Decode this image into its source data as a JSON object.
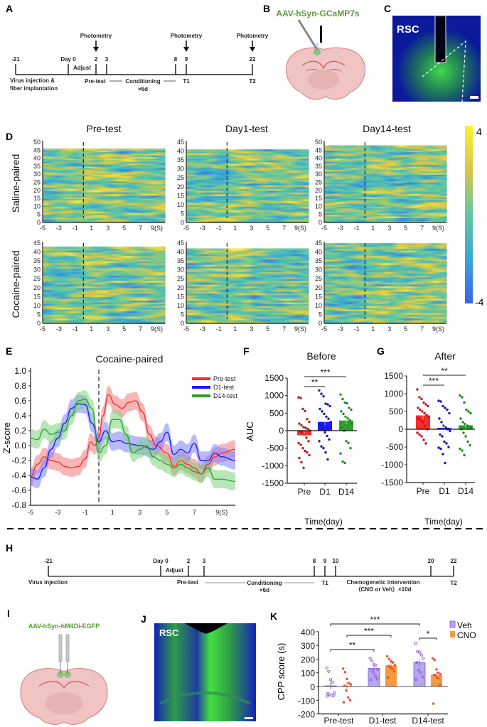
{
  "panel_labels": {
    "A": "A",
    "B": "B",
    "C": "C",
    "D": "D",
    "E": "E",
    "F": "F",
    "G": "G",
    "H": "H",
    "I": "I",
    "J": "J",
    "K": "K"
  },
  "timeline_a": {
    "photometry": "Photometry",
    "days": [
      "-21",
      "Day 0",
      "2",
      "3",
      "8",
      "9",
      "22"
    ],
    "adjust": "Adjust",
    "virus_line1": "Virus injection &",
    "virus_line2": "fiber implantation",
    "pretest": "Pre-test",
    "conditioning": "Conditioning",
    "conditioning_duration": "×6d",
    "t1": "T1",
    "t2": "T2"
  },
  "panel_b": {
    "virus": "AAV-hSyn-GCaMP7s"
  },
  "panel_c": {
    "region": "RSC"
  },
  "timeline_h": {
    "days": [
      "-21",
      "Day 0",
      "2",
      "3",
      "8",
      "9",
      "10",
      "20",
      "22"
    ],
    "adjust": "Adjust",
    "virus": "Virus injection",
    "pretest": "Pre-test",
    "conditioning": "Conditioning",
    "conditioning_duration": "×6d",
    "t1": "T1",
    "intervention": "Chemogenetic intervention",
    "intervention_detail": "（CNO or Veh）×10d",
    "t2": "T2"
  },
  "panel_i": {
    "virus": "AAV-hSyn-hM4Di-EGFP"
  },
  "panel_j": {
    "region": "RSC"
  },
  "colors": {
    "pre": "#ff2a2a",
    "d1": "#1a1aff",
    "d14": "#2ca02c",
    "veh": "#b9a6f0",
    "cno": "#f39a3c",
    "pre_dots": "#c01818",
    "d1_dots": "#1a1aa8",
    "d14_dots": "#1f8a1f"
  },
  "chart_data": [
    {
      "type": "heatmap",
      "columns": [
        "Pre-test",
        "Day1-test",
        "Day14-test"
      ],
      "rows": [
        "Saline-paired",
        "Cocaine-paired"
      ],
      "x_ticks": [
        "-5",
        "-3",
        "-1",
        "1",
        "3",
        "5",
        "7",
        "9(S)"
      ],
      "xlim": [
        -5,
        10
      ],
      "y_axis_max": [
        [
          50,
          45,
          50
        ],
        [
          45,
          45,
          45
        ]
      ],
      "trial_counts": [
        [
          46,
          41,
          48
        ],
        [
          43,
          42,
          45
        ]
      ],
      "event_marker_x": 0,
      "colorbar": {
        "max_label": "4",
        "min_label": "-4",
        "colormap": "parula"
      }
    },
    {
      "type": "line",
      "title": "Cocaine-paired",
      "ylabel": "Z-score",
      "xlim": [
        -5,
        10
      ],
      "ylim": [
        -0.8,
        1.0
      ],
      "x_ticks": [
        "-5",
        "-3",
        "-1",
        "1",
        "3",
        "5",
        "7",
        "9(S)"
      ],
      "y_ticks": [
        "1.0",
        "0.8",
        "0.6",
        "0.4",
        "0.2",
        "0.0",
        "-0.2",
        "-0.4",
        "-0.6",
        "-0.8"
      ],
      "event_marker_x": 0,
      "legend_position": "top-right",
      "band": 0.12,
      "series": [
        {
          "name": "Pre-test",
          "color": "#ff2a2a",
          "x": [
            -5,
            -4.5,
            -4,
            -3.5,
            -3,
            -2.5,
            -2,
            -1.5,
            -1,
            -0.6,
            -0.3,
            0,
            0.3,
            0.7,
            1.2,
            1.7,
            2.2,
            2.7,
            3.2,
            3.7,
            4.2,
            5,
            5.5,
            6,
            6.5,
            7,
            7.5,
            8,
            8.5,
            9,
            10
          ],
          "y": [
            -0.42,
            -0.25,
            -0.15,
            -0.2,
            -0.22,
            -0.28,
            -0.3,
            -0.28,
            -0.18,
            0.05,
            0.0,
            0.1,
            0.4,
            0.68,
            0.55,
            0.5,
            0.58,
            0.6,
            0.45,
            0.15,
            0.0,
            -0.1,
            -0.28,
            -0.2,
            -0.25,
            -0.3,
            -0.38,
            -0.25,
            -0.15,
            -0.1,
            -0.05
          ]
        },
        {
          "name": "D1-test",
          "color": "#1a1aff",
          "x": [
            -5,
            -4.5,
            -4,
            -3.5,
            -3,
            -2.5,
            -2,
            -1.5,
            -1,
            -0.5,
            0,
            0.5,
            1,
            1.5,
            2,
            3,
            4,
            4.5,
            5,
            5.5,
            6,
            6.5,
            7,
            7.5,
            8,
            8.5,
            9,
            10
          ],
          "y": [
            -0.42,
            -0.45,
            -0.3,
            -0.05,
            0.1,
            0.3,
            0.5,
            0.56,
            0.55,
            0.3,
            0.05,
            0.2,
            0.05,
            0.07,
            0.03,
            0.0,
            -0.05,
            0.05,
            0.18,
            -0.12,
            -0.05,
            -0.1,
            0.03,
            -0.2,
            -0.2,
            -0.1,
            -0.15,
            -0.2
          ]
        },
        {
          "name": "D14-test",
          "color": "#2ca02c",
          "x": [
            -5,
            -4.5,
            -4,
            -3.5,
            -3,
            -2.5,
            -2,
            -1.5,
            -1,
            -0.5,
            0,
            0.5,
            1,
            1.5,
            2,
            2.5,
            3,
            3.5,
            4,
            4.5,
            5,
            5.5,
            6,
            6.5,
            7,
            7.5,
            8,
            8.5,
            9,
            10
          ],
          "y": [
            0.1,
            0.08,
            0.22,
            0.15,
            0.18,
            0.2,
            0.4,
            0.6,
            0.62,
            0.5,
            -0.1,
            0.0,
            0.35,
            0.35,
            0.15,
            -0.1,
            -0.05,
            0.0,
            -0.15,
            -0.2,
            -0.25,
            -0.3,
            -0.25,
            -0.3,
            -0.35,
            -0.38,
            -0.3,
            -0.45,
            -0.45,
            -0.48
          ]
        }
      ]
    },
    {
      "type": "bar",
      "title": "Before",
      "ylabel": "AUC",
      "xlabel": "Time(day)",
      "categories": [
        "Pre",
        "D1",
        "D14"
      ],
      "ylim": [
        -1500,
        1500
      ],
      "y_ticks": [
        "1500",
        "1000",
        "500",
        "0",
        "-500",
        "-1000",
        "-1500"
      ],
      "means": [
        -130,
        250,
        290
      ],
      "points": [
        [
          950,
          930,
          620,
          560,
          330,
          250,
          200,
          150,
          100,
          80,
          50,
          0,
          -20,
          -50,
          -120,
          -200,
          -300,
          -350,
          -400,
          -500,
          -580,
          -620,
          -700,
          -780,
          -900,
          -1060
        ],
        [
          1150,
          1050,
          980,
          770,
          750,
          700,
          620,
          550,
          480,
          400,
          340,
          250,
          150,
          50,
          -50,
          -150,
          -250,
          -300,
          -450,
          -500,
          -620,
          -820
        ],
        [
          1030,
          900,
          800,
          780,
          650,
          600,
          550,
          480,
          400,
          350,
          300,
          200,
          100,
          0,
          -300,
          -350,
          -500,
          -650,
          -880,
          -920
        ]
      ],
      "significance": [
        {
          "from": "Pre",
          "to": "D14",
          "label": "***"
        },
        {
          "from": "Pre",
          "to": "D1",
          "label": "**"
        }
      ]
    },
    {
      "type": "bar",
      "title": "After",
      "xlabel": "Time(day)",
      "categories": [
        "Pre",
        "D1",
        "D14"
      ],
      "ylim": [
        -1500,
        1500
      ],
      "y_ticks": [
        "1500",
        "1000",
        "500",
        "0",
        "-500",
        "-1000",
        "-1500"
      ],
      "means": [
        390,
        40,
        110
      ],
      "points": [
        [
          1120,
          900,
          850,
          750,
          700,
          650,
          600,
          550,
          500,
          450,
          400,
          350,
          300,
          250,
          200,
          100,
          0,
          -100,
          -150,
          -200,
          -300,
          -400
        ],
        [
          800,
          780,
          650,
          600,
          550,
          450,
          300,
          200,
          100,
          50,
          0,
          -50,
          -150,
          -200,
          -350,
          -400,
          -500,
          -520,
          -550,
          -700,
          -950
        ],
        [
          950,
          900,
          750,
          550,
          500,
          450,
          300,
          200,
          150,
          100,
          80,
          50,
          0,
          -100,
          -200,
          -350,
          -450,
          -550,
          -600,
          -730
        ]
      ],
      "significance": [
        {
          "from": "Pre",
          "to": "D14",
          "label": "**"
        },
        {
          "from": "Pre",
          "to": "D1",
          "label": "***"
        }
      ]
    },
    {
      "type": "bar",
      "ylabel": "CPP score (s)",
      "categories": [
        "Pre-test",
        "D1-test",
        "D14-test"
      ],
      "ylim": [
        -200,
        400
      ],
      "y_ticks": [
        "400",
        "300",
        "200",
        "100",
        "0",
        "-100",
        "-200"
      ],
      "legend_position": "top-right",
      "series": [
        {
          "name": "Veh",
          "color": "#b9a6f0",
          "means": [
            5,
            132,
            175
          ],
          "points": [
            [
              135,
              110,
              50,
              30,
              -45,
              -50,
              -60,
              -65,
              -65,
              -70
            ],
            [
              205,
              185,
              160,
              155,
              125,
              120,
              100,
              75,
              55,
              50
            ],
            [
              315,
              255,
              250,
              230,
              205,
              175,
              120,
              100,
              70,
              50
            ]
          ]
        },
        {
          "name": "CNO",
          "color": "#f39a3c",
          "means": [
            5,
            153,
            83
          ],
          "points": [
            [
              130,
              105,
              55,
              25,
              15,
              5,
              -30,
              -80,
              -100,
              -115
            ],
            [
              220,
              200,
              185,
              175,
              155,
              150,
              140,
              130,
              110,
              65
            ],
            [
              205,
              195,
              125,
              100,
              90,
              85,
              80,
              60,
              10,
              -125
            ]
          ]
        }
      ],
      "significance": [
        {
          "from": "Pre-test Veh",
          "to": "D14-test Veh",
          "label": "***"
        },
        {
          "from": "Pre-test CNO",
          "to": "D1-test CNO",
          "label": "***"
        },
        {
          "from": "Pre-test Veh",
          "to": "D1-test Veh",
          "label": "**"
        },
        {
          "from": "D14-test Veh",
          "to": "D14-test CNO",
          "label": "*"
        }
      ]
    }
  ]
}
